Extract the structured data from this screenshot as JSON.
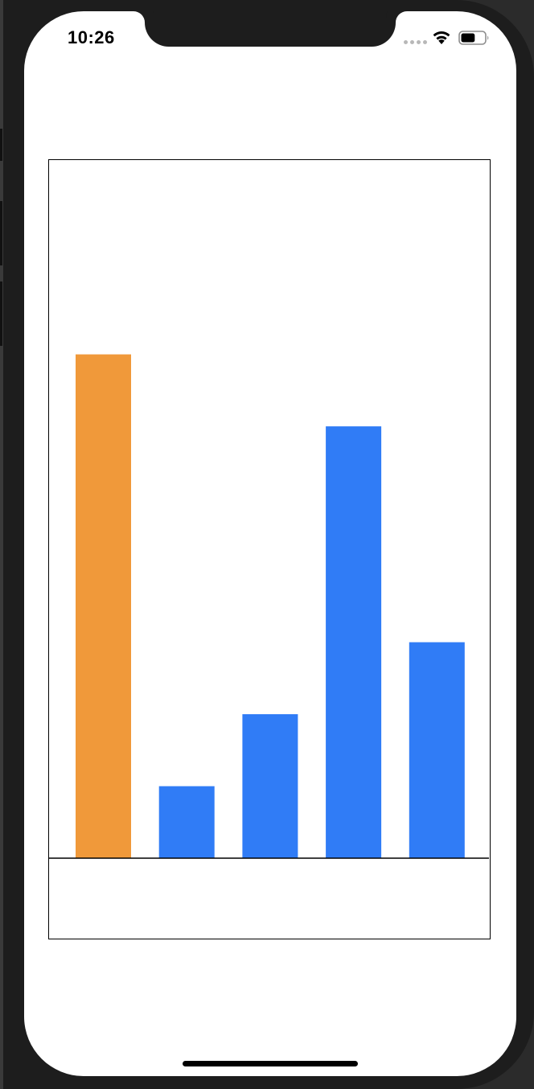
{
  "status_bar": {
    "time": "10:26",
    "wifi_icon": "wifi-icon",
    "battery_icon": "battery-icon",
    "signal_icon": "cellular-signal-icon",
    "battery_level": 0.6
  },
  "chart_data": {
    "type": "bar",
    "categories": [
      "",
      "",
      "",
      "",
      ""
    ],
    "values": [
      7,
      1,
      2,
      6,
      3
    ],
    "colors": [
      "#F0993A",
      "#307CF6",
      "#307CF6",
      "#307CF6",
      "#307CF6"
    ],
    "title": "",
    "xlabel": "",
    "ylabel": "",
    "ylim": [
      0,
      9.7
    ],
    "grid": false,
    "legend": "none"
  }
}
